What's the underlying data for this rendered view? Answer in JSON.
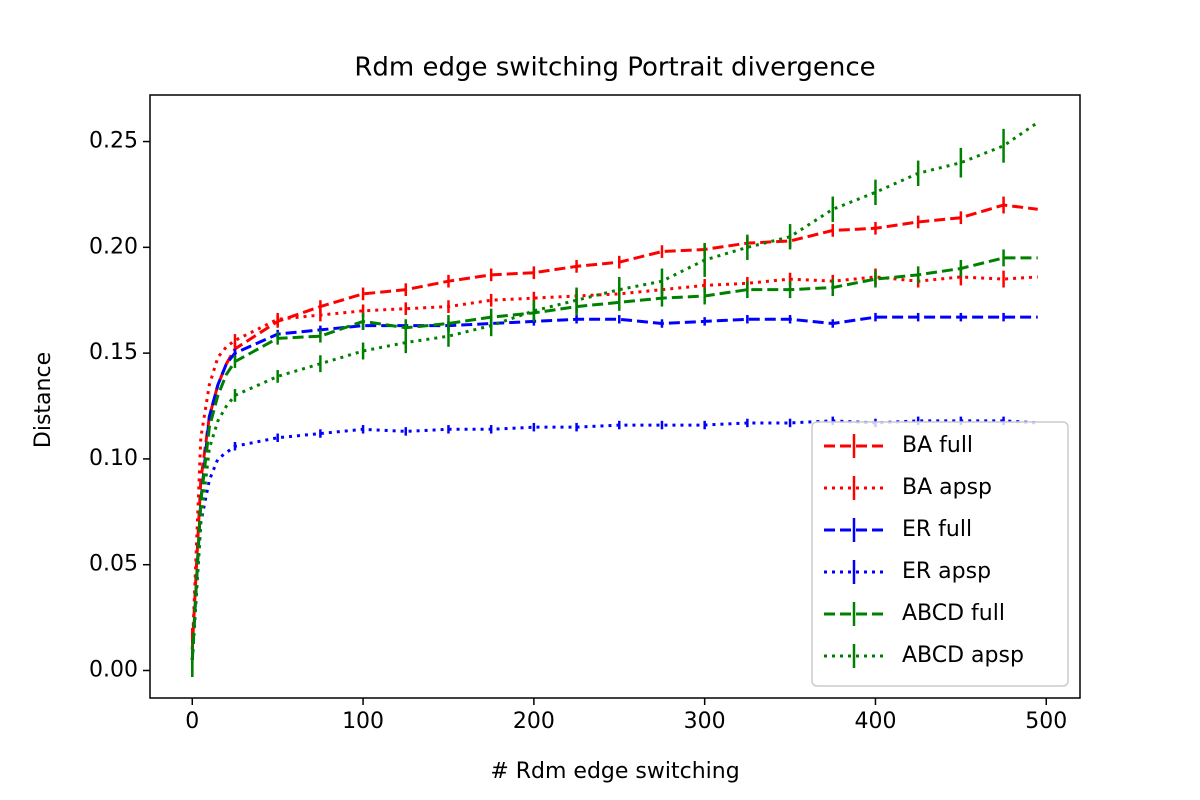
{
  "chart_data": {
    "type": "line",
    "title": "Rdm edge switching Portrait divergence",
    "x_label": "# Rdm edge switching",
    "y_label": "Distance",
    "x": [
      0,
      5,
      10,
      15,
      20,
      25,
      50,
      75,
      100,
      125,
      150,
      175,
      200,
      225,
      250,
      275,
      300,
      325,
      350,
      375,
      400,
      425,
      450,
      475,
      495
    ],
    "xlim": [
      -24.75,
      519.75
    ],
    "xticks": [
      0,
      100,
      200,
      300,
      400,
      500
    ],
    "ylim": [
      -0.013,
      0.272
    ],
    "yticks": [
      {
        "value": 0,
        "label": "0.00"
      },
      {
        "value": 0.05,
        "label": "0.05"
      },
      {
        "value": 0.1,
        "label": "0.10"
      },
      {
        "value": 0.15,
        "label": "0.15"
      },
      {
        "value": 0.2,
        "label": "0.20"
      },
      {
        "value": 0.25,
        "label": "0.25"
      }
    ],
    "legend": "lower right",
    "series": [
      {
        "name": "BA full",
        "color": "#ff0000",
        "linestyle": "dashed",
        "values": [
          0.01,
          0.09,
          0.12,
          0.135,
          0.145,
          0.152,
          0.165,
          0.172,
          0.178,
          0.18,
          0.184,
          0.187,
          0.188,
          0.191,
          0.193,
          0.198,
          0.199,
          0.202,
          0.203,
          0.208,
          0.209,
          0.212,
          0.214,
          0.22,
          0.218
        ],
        "errors": [
          0.01,
          null,
          null,
          null,
          null,
          0.003,
          0.003,
          0.003,
          0.003,
          0.003,
          0.003,
          0.003,
          0.003,
          0.003,
          0.003,
          0.003,
          0.003,
          0.003,
          0.003,
          0.003,
          0.003,
          0.003,
          0.003,
          0.004,
          null
        ]
      },
      {
        "name": "BA apsp",
        "color": "#ff0000",
        "linestyle": "dotted",
        "values": [
          0.01,
          0.11,
          0.135,
          0.148,
          0.153,
          0.156,
          0.166,
          0.168,
          0.17,
          0.171,
          0.172,
          0.175,
          0.176,
          0.177,
          0.178,
          0.18,
          0.182,
          0.183,
          0.185,
          0.184,
          0.186,
          0.184,
          0.186,
          0.185,
          0.186
        ],
        "errors": [
          0.01,
          null,
          null,
          null,
          null,
          0.003,
          0.003,
          0.003,
          0.003,
          0.003,
          0.003,
          0.003,
          0.003,
          0.003,
          0.003,
          0.003,
          0.003,
          0.003,
          0.003,
          0.003,
          0.004,
          0.003,
          0.004,
          0.004,
          null
        ]
      },
      {
        "name": "ER full",
        "color": "#0000ff",
        "linestyle": "dashed",
        "values": [
          0.005,
          0.08,
          0.12,
          0.135,
          0.145,
          0.15,
          0.159,
          0.161,
          0.163,
          0.163,
          0.163,
          0.164,
          0.165,
          0.166,
          0.166,
          0.164,
          0.165,
          0.166,
          0.166,
          0.164,
          0.167,
          0.167,
          0.167,
          0.167,
          0.167
        ],
        "errors": [
          0.008,
          null,
          null,
          null,
          null,
          0.002,
          0.002,
          0.002,
          0.002,
          0.002,
          0.002,
          0.002,
          0.002,
          0.002,
          0.002,
          0.002,
          0.002,
          0.002,
          0.002,
          0.002,
          0.002,
          0.002,
          0.002,
          0.002,
          null
        ]
      },
      {
        "name": "ER apsp",
        "color": "#0000ff",
        "linestyle": "dotted",
        "values": [
          0.005,
          0.07,
          0.09,
          0.1,
          0.103,
          0.106,
          0.11,
          0.112,
          0.114,
          0.113,
          0.114,
          0.114,
          0.115,
          0.115,
          0.116,
          0.116,
          0.116,
          0.117,
          0.117,
          0.118,
          0.117,
          0.118,
          0.118,
          0.118,
          0.117
        ],
        "errors": [
          0.008,
          null,
          null,
          null,
          null,
          0.002,
          0.002,
          0.002,
          0.002,
          0.002,
          0.002,
          0.002,
          0.002,
          0.002,
          0.002,
          0.002,
          0.002,
          0.002,
          0.002,
          0.002,
          0.002,
          0.002,
          0.002,
          0.002,
          null
        ]
      },
      {
        "name": "ABCD full",
        "color": "#008000",
        "linestyle": "dashed",
        "values": [
          0.005,
          0.08,
          0.115,
          0.13,
          0.14,
          0.146,
          0.157,
          0.158,
          0.165,
          0.162,
          0.164,
          0.167,
          0.169,
          0.172,
          0.174,
          0.176,
          0.177,
          0.18,
          0.18,
          0.181,
          0.185,
          0.187,
          0.19,
          0.195,
          0.195
        ],
        "errors": [
          0.008,
          null,
          null,
          null,
          null,
          0.003,
          0.003,
          0.003,
          0.004,
          0.004,
          0.004,
          0.004,
          0.004,
          0.004,
          0.004,
          0.004,
          0.004,
          0.004,
          0.004,
          0.004,
          0.004,
          0.004,
          0.004,
          0.004,
          null
        ]
      },
      {
        "name": "ABCD apsp",
        "color": "#008000",
        "linestyle": "dotted",
        "values": [
          0.005,
          0.07,
          0.105,
          0.118,
          0.125,
          0.13,
          0.139,
          0.145,
          0.151,
          0.155,
          0.158,
          0.163,
          0.17,
          0.175,
          0.18,
          0.184,
          0.194,
          0.2,
          0.205,
          0.218,
          0.226,
          0.235,
          0.24,
          0.248,
          0.259
        ],
        "errors": [
          0.008,
          null,
          null,
          null,
          null,
          0.003,
          0.003,
          0.004,
          0.004,
          0.005,
          0.005,
          0.005,
          0.005,
          0.006,
          0.006,
          0.006,
          0.008,
          0.006,
          0.006,
          0.006,
          0.006,
          0.006,
          0.007,
          0.008,
          null
        ]
      }
    ]
  }
}
